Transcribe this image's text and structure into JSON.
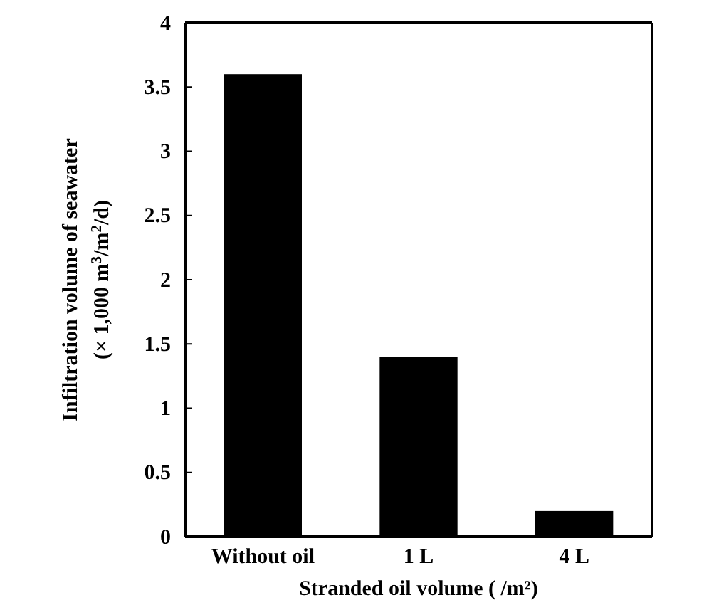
{
  "chart_data": {
    "type": "bar",
    "xlabel": "Stranded oil volume ( /m²)",
    "ylabel": "Infiltration volume of seawater\n(× 1,000 m$^{3}$/m$^{2}$/d)",
    "categories": [
      "Without oil",
      "1 L",
      "4 L"
    ],
    "values": [
      3.6,
      1.4,
      0.2
    ],
    "color": "#000000",
    "ylim": [
      0,
      4
    ],
    "yticks": [
      0,
      0.5,
      1,
      1.5,
      2,
      2.5,
      3,
      3.5,
      4
    ],
    "grid": false
  }
}
